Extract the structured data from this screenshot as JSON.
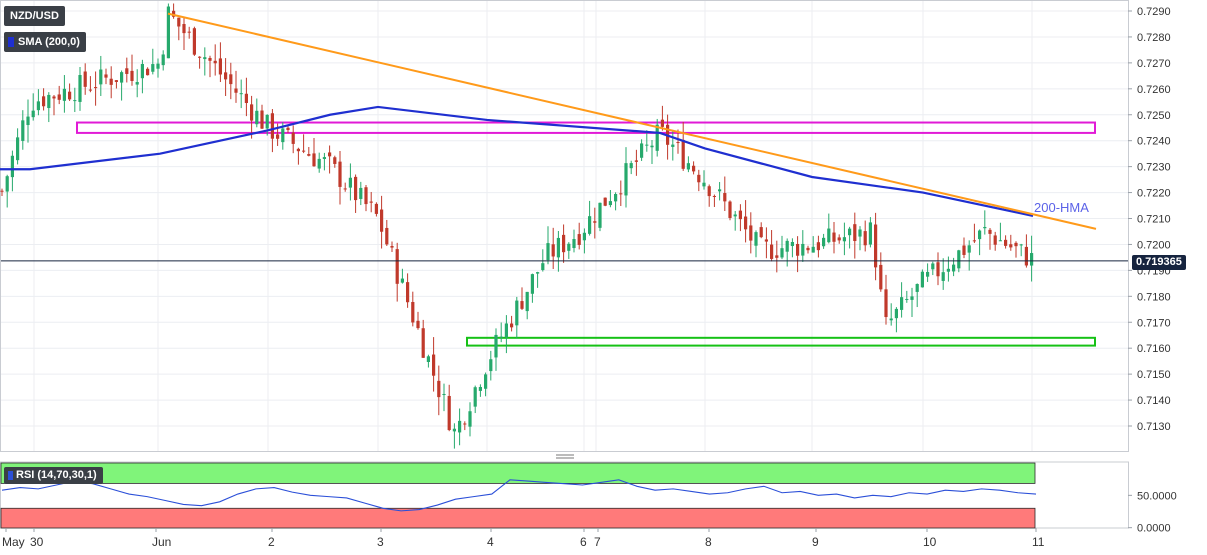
{
  "header": {
    "symbol": "NZD/USD",
    "indicator": "SMA (200,0)"
  },
  "rsi_panel": {
    "label": "RSI (14,70,30,1)"
  },
  "annotations": {
    "hma_label": "200-HMA",
    "current_price": "0.719365"
  },
  "colors": {
    "up_candle": "#26a96c",
    "down_candle": "#c0392b",
    "hma_line": "#1f2fd0",
    "trendline": "#ff9a1a",
    "resistance_box": "#e11ad6",
    "support_box": "#16c116",
    "rsi_line": "#2b4fd8",
    "rsi_overbought": "#80f47a",
    "rsi_oversold": "#ff7a7a"
  },
  "chart_data": [
    {
      "type": "candlestick",
      "pair": "NZD/USD",
      "y_axis": {
        "ylim": [
          0.7124,
          0.7293
        ],
        "ticks": [
          "0.7290",
          "0.7280",
          "0.7270",
          "0.7260",
          "0.7250",
          "0.7240",
          "0.7230",
          "0.7220",
          "0.7210",
          "0.7200",
          "0.7190",
          "0.7180",
          "0.7170",
          "0.7160",
          "0.7150",
          "0.7140",
          "0.7130"
        ]
      },
      "x_axis": {
        "tick_labels": [
          "May",
          "30",
          "Jun",
          "2",
          "3",
          "4",
          "6",
          "7",
          "8",
          "9",
          "10",
          "11"
        ]
      },
      "grid": true,
      "key_closes": [
        {
          "t": "May 30 open",
          "v": 0.7218
        },
        {
          "t": "May 30",
          "v": 0.7255
        },
        {
          "t": "Jun 1 high",
          "v": 0.7289
        },
        {
          "t": "Jun 1",
          "v": 0.727
        },
        {
          "t": "Jun 2",
          "v": 0.7245
        },
        {
          "t": "Jun 2 late",
          "v": 0.723
        },
        {
          "t": "Jun 3",
          "v": 0.721
        },
        {
          "t": "Jun 3 low",
          "v": 0.7127
        },
        {
          "t": "Jun 4",
          "v": 0.7155
        },
        {
          "t": "Jun 4 late",
          "v": 0.7195
        },
        {
          "t": "Jun 6",
          "v": 0.7205
        },
        {
          "t": "Jun 7",
          "v": 0.7243
        },
        {
          "t": "Jun 8",
          "v": 0.7225
        },
        {
          "t": "Jun 8 late",
          "v": 0.7198
        },
        {
          "t": "Jun 9",
          "v": 0.72
        },
        {
          "t": "Jun 9 late",
          "v": 0.7205
        },
        {
          "t": "Jun 10 low",
          "v": 0.7168
        },
        {
          "t": "Jun 10",
          "v": 0.7185
        },
        {
          "t": "Jun 10 late",
          "v": 0.7205
        },
        {
          "t": "Jun 11",
          "v": 0.7194
        }
      ],
      "overlays": {
        "hma_200": [
          {
            "t": "May 30 open",
            "v": 0.7229
          },
          {
            "t": "May 30",
            "v": 0.7229
          },
          {
            "t": "Jun 1",
            "v": 0.7235
          },
          {
            "t": "Jun 2",
            "v": 0.7244
          },
          {
            "t": "Jun 2 late",
            "v": 0.725
          },
          {
            "t": "Jun 3",
            "v": 0.7253
          },
          {
            "t": "Jun 4",
            "v": 0.7248
          },
          {
            "t": "Jun 7",
            "v": 0.7243
          },
          {
            "t": "Jun 8",
            "v": 0.7237
          },
          {
            "t": "Jun 9",
            "v": 0.7226
          },
          {
            "t": "Jun 10",
            "v": 0.722
          },
          {
            "t": "Jun 11",
            "v": 0.7211
          }
        ],
        "trendline": [
          {
            "t": "Jun 1 high",
            "v": 0.7289
          },
          {
            "t": "Jun 11 ext",
            "v": 0.7206
          }
        ],
        "resistance_zone": [
          0.7243,
          0.7247
        ],
        "support_zone": [
          0.7161,
          0.7164
        ],
        "current_price": 0.719365
      }
    },
    {
      "type": "line",
      "name": "RSI (14,70,30,1)",
      "ylim": [
        0,
        100
      ],
      "ticks": [
        "50.0000",
        "0.0000"
      ],
      "overbought": 70,
      "oversold": 30,
      "values": [
        58,
        62,
        60,
        66,
        72,
        68,
        60,
        52,
        48,
        42,
        36,
        34,
        40,
        52,
        60,
        62,
        55,
        50,
        48,
        46,
        38,
        30,
        26,
        28,
        35,
        44,
        48,
        52,
        74,
        72,
        70,
        68,
        66,
        70,
        74,
        64,
        58,
        60,
        56,
        52,
        54,
        60,
        64,
        54,
        56,
        50,
        52,
        46,
        50,
        48,
        54,
        52,
        58,
        56,
        60,
        58,
        54,
        52
      ]
    }
  ]
}
